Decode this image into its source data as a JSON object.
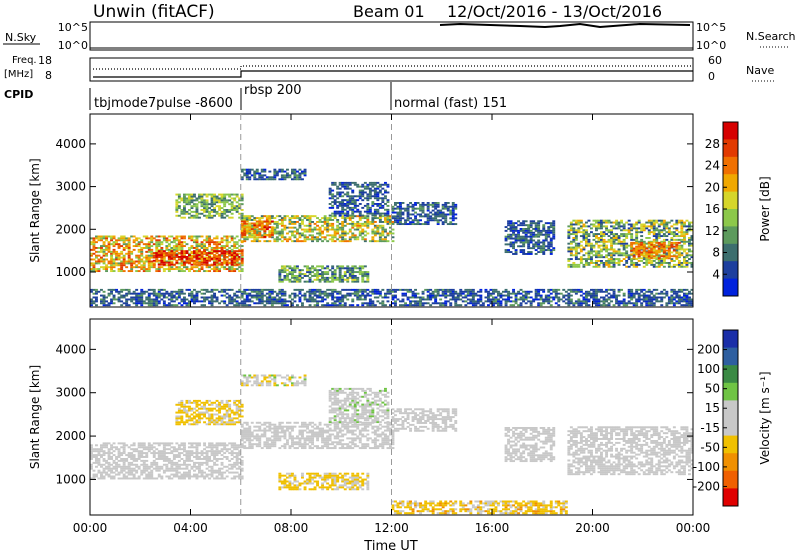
{
  "header": {
    "title": "Unwin (fitACF)",
    "beam": "Beam 01",
    "dates": "12/Oct/2016 - 13/Oct/2016"
  },
  "nsky": {
    "label": "N.Sky",
    "ticks": [
      "10^5",
      "10^0"
    ],
    "right_ticks": [
      "10^5",
      "10^0"
    ],
    "legend": "N.Search"
  },
  "freq": {
    "label_line1": "Freq.",
    "label_line2": "[MHz]",
    "ticks": [
      "18",
      "8"
    ],
    "right_ticks": [
      "60",
      "0"
    ],
    "legend": "Nave"
  },
  "cpid": {
    "label": "CPID",
    "segments": [
      {
        "label": "tbjmode7pulse -8600",
        "start": 0,
        "end": 6
      },
      {
        "label": "rbsp 200",
        "start": 6,
        "end": 12
      },
      {
        "label": "normal (fast) 151",
        "start": 12,
        "end": 24
      }
    ]
  },
  "colors": {
    "power": [
      "#0022dd",
      "#1d3f9e",
      "#3c6e6e",
      "#5c9a5c",
      "#8cc84a",
      "#d6d62a",
      "#f0a800",
      "#f07000",
      "#e23a00",
      "#d60000"
    ],
    "velocity": [
      "#1a2ea8",
      "#2e5fa0",
      "#3a8a44",
      "#6fc444",
      "#c8c8c8",
      "#c8c8c8",
      "#f0c000",
      "#f09000",
      "#f06000",
      "#e00000"
    ]
  },
  "chart_data": [
    {
      "type": "heatmap",
      "name": "power",
      "ylabel": "Slant Range [km]",
      "xlabel": "Time UT",
      "x_ticks": [
        "00:00",
        "04:00",
        "08:00",
        "12:00",
        "16:00",
        "20:00",
        "00:00"
      ],
      "y_ticks": [
        "1000",
        "2000",
        "3000",
        "4000"
      ],
      "xlim": [
        0,
        24
      ],
      "ylim": [
        180,
        4700
      ],
      "colorbar_label": "Power [dB]",
      "colorbar_ticks": [
        "28",
        "24",
        "20",
        "16",
        "12",
        "8",
        "4"
      ],
      "colorbar_range": [
        0,
        30
      ],
      "regions": [
        {
          "t0": 0.0,
          "t1": 6.0,
          "r0": 1000,
          "r1": 1850,
          "val": 18,
          "spread": 8
        },
        {
          "t0": 2.5,
          "t1": 6.0,
          "r0": 1150,
          "r1": 1500,
          "val": 25,
          "spread": 5
        },
        {
          "t0": 3.4,
          "t1": 6.0,
          "r0": 2250,
          "r1": 2800,
          "val": 12,
          "spread": 6
        },
        {
          "t0": 6.0,
          "t1": 12.0,
          "r0": 1700,
          "r1": 2300,
          "val": 15,
          "spread": 8
        },
        {
          "t0": 6.0,
          "t1": 7.2,
          "r0": 1800,
          "r1": 2200,
          "val": 22,
          "spread": 6
        },
        {
          "t0": 7.5,
          "t1": 11.0,
          "r0": 750,
          "r1": 1150,
          "val": 10,
          "spread": 6
        },
        {
          "t0": 6.0,
          "t1": 8.5,
          "r0": 3150,
          "r1": 3400,
          "val": 6,
          "spread": 4
        },
        {
          "t0": 9.5,
          "t1": 11.8,
          "r0": 2300,
          "r1": 3100,
          "val": 6,
          "spread": 4
        },
        {
          "t0": 12.0,
          "t1": 14.5,
          "r0": 2100,
          "r1": 2600,
          "val": 6,
          "spread": 4
        },
        {
          "t0": 16.5,
          "t1": 18.5,
          "r0": 1400,
          "r1": 2200,
          "val": 6,
          "spread": 4
        },
        {
          "t0": 19.0,
          "t1": 24.0,
          "r0": 1100,
          "r1": 2200,
          "val": 12,
          "spread": 8
        },
        {
          "t0": 21.5,
          "t1": 23.5,
          "r0": 1300,
          "r1": 1700,
          "val": 22,
          "spread": 5
        },
        {
          "t0": 0.0,
          "t1": 24.0,
          "r0": 200,
          "r1": 600,
          "val": 6,
          "spread": 4
        }
      ]
    },
    {
      "type": "heatmap",
      "name": "velocity",
      "ylabel": "Slant Range [km]",
      "xlabel": "Time UT",
      "x_ticks": [
        "00:00",
        "04:00",
        "08:00",
        "12:00",
        "16:00",
        "20:00",
        "00:00"
      ],
      "y_ticks": [
        "1000",
        "2000",
        "3000",
        "4000"
      ],
      "xlim": [
        0,
        24
      ],
      "ylim": [
        180,
        4700
      ],
      "colorbar_label": "Velocity [m s⁻¹]",
      "colorbar_ticks": [
        "200",
        "100",
        "50",
        "15",
        "-15",
        "-50",
        "-100",
        "-200"
      ],
      "colorbar_range": [
        -250,
        250
      ],
      "regions": [
        {
          "t0": 0.0,
          "t1": 6.0,
          "r0": 1000,
          "r1": 1850,
          "val": 0,
          "spread": 20
        },
        {
          "t0": 3.4,
          "t1": 6.0,
          "r0": 2250,
          "r1": 2800,
          "val": -60,
          "spread": 30
        },
        {
          "t0": 6.0,
          "t1": 12.0,
          "r0": 1700,
          "r1": 2300,
          "val": 0,
          "spread": 25
        },
        {
          "t0": 7.5,
          "t1": 11.0,
          "r0": 750,
          "r1": 1150,
          "val": -60,
          "spread": 30
        },
        {
          "t0": 6.0,
          "t1": 8.5,
          "r0": 3150,
          "r1": 3400,
          "val": 0,
          "spread": 80
        },
        {
          "t0": 9.5,
          "t1": 11.8,
          "r0": 2300,
          "r1": 3100,
          "val": 20,
          "spread": 40
        },
        {
          "t0": 12.0,
          "t1": 14.5,
          "r0": 2100,
          "r1": 2600,
          "val": 0,
          "spread": 30
        },
        {
          "t0": 16.5,
          "t1": 18.5,
          "r0": 1400,
          "r1": 2200,
          "val": 0,
          "spread": 40
        },
        {
          "t0": 19.0,
          "t1": 24.0,
          "r0": 1100,
          "r1": 2200,
          "val": 0,
          "spread": 35
        },
        {
          "t0": 12.0,
          "t1": 19.0,
          "r0": 200,
          "r1": 500,
          "val": -70,
          "spread": 40
        }
      ]
    }
  ]
}
